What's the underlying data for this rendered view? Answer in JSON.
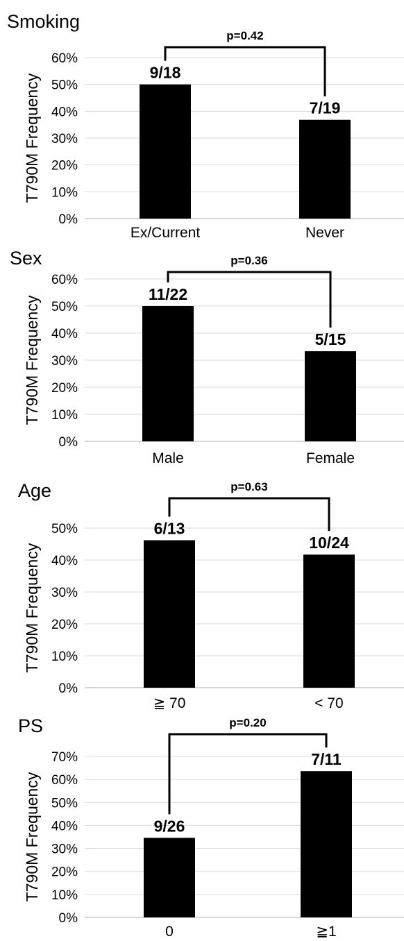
{
  "chart_data": [
    {
      "type": "bar",
      "title": "Smoking",
      "ylabel": "T790M Frequency",
      "categories": [
        "Ex/Current",
        "Never"
      ],
      "values": [
        50,
        36.8
      ],
      "data_labels": [
        "9/18",
        "7/19"
      ],
      "yticks": [
        "0%",
        "10%",
        "20%",
        "30%",
        "40%",
        "50%",
        "60%"
      ],
      "ylim": [
        0,
        60
      ],
      "grid": true,
      "annotation": "p=0.42"
    },
    {
      "type": "bar",
      "title": "Sex",
      "ylabel": "T790M Frequency",
      "categories": [
        "Male",
        "Female"
      ],
      "values": [
        50,
        33.3
      ],
      "data_labels": [
        "11/22",
        "5/15"
      ],
      "yticks": [
        "0%",
        "10%",
        "20%",
        "30%",
        "40%",
        "50%",
        "60%"
      ],
      "ylim": [
        0,
        60
      ],
      "grid": true,
      "annotation": "p=0.36"
    },
    {
      "type": "bar",
      "title": "Age",
      "ylabel": "T790M Frequency",
      "categories": [
        "≧ 70",
        "< 70"
      ],
      "values": [
        46.2,
        41.7
      ],
      "data_labels": [
        "6/13",
        "10/24"
      ],
      "yticks": [
        "0%",
        "10%",
        "20%",
        "30%",
        "40%",
        "50%"
      ],
      "ylim": [
        0,
        50
      ],
      "grid": true,
      "annotation": "p=0.63"
    },
    {
      "type": "bar",
      "title": "PS",
      "ylabel": "T790M Frequency",
      "categories": [
        "0",
        "≧1"
      ],
      "values": [
        34.6,
        63.6
      ],
      "data_labels": [
        "9/26",
        "7/11"
      ],
      "yticks": [
        "0%",
        "10%",
        "20%",
        "30%",
        "40%",
        "50%",
        "60%",
        "70%"
      ],
      "ylim": [
        0,
        70
      ],
      "grid": true,
      "annotation": "p=0.20"
    }
  ]
}
